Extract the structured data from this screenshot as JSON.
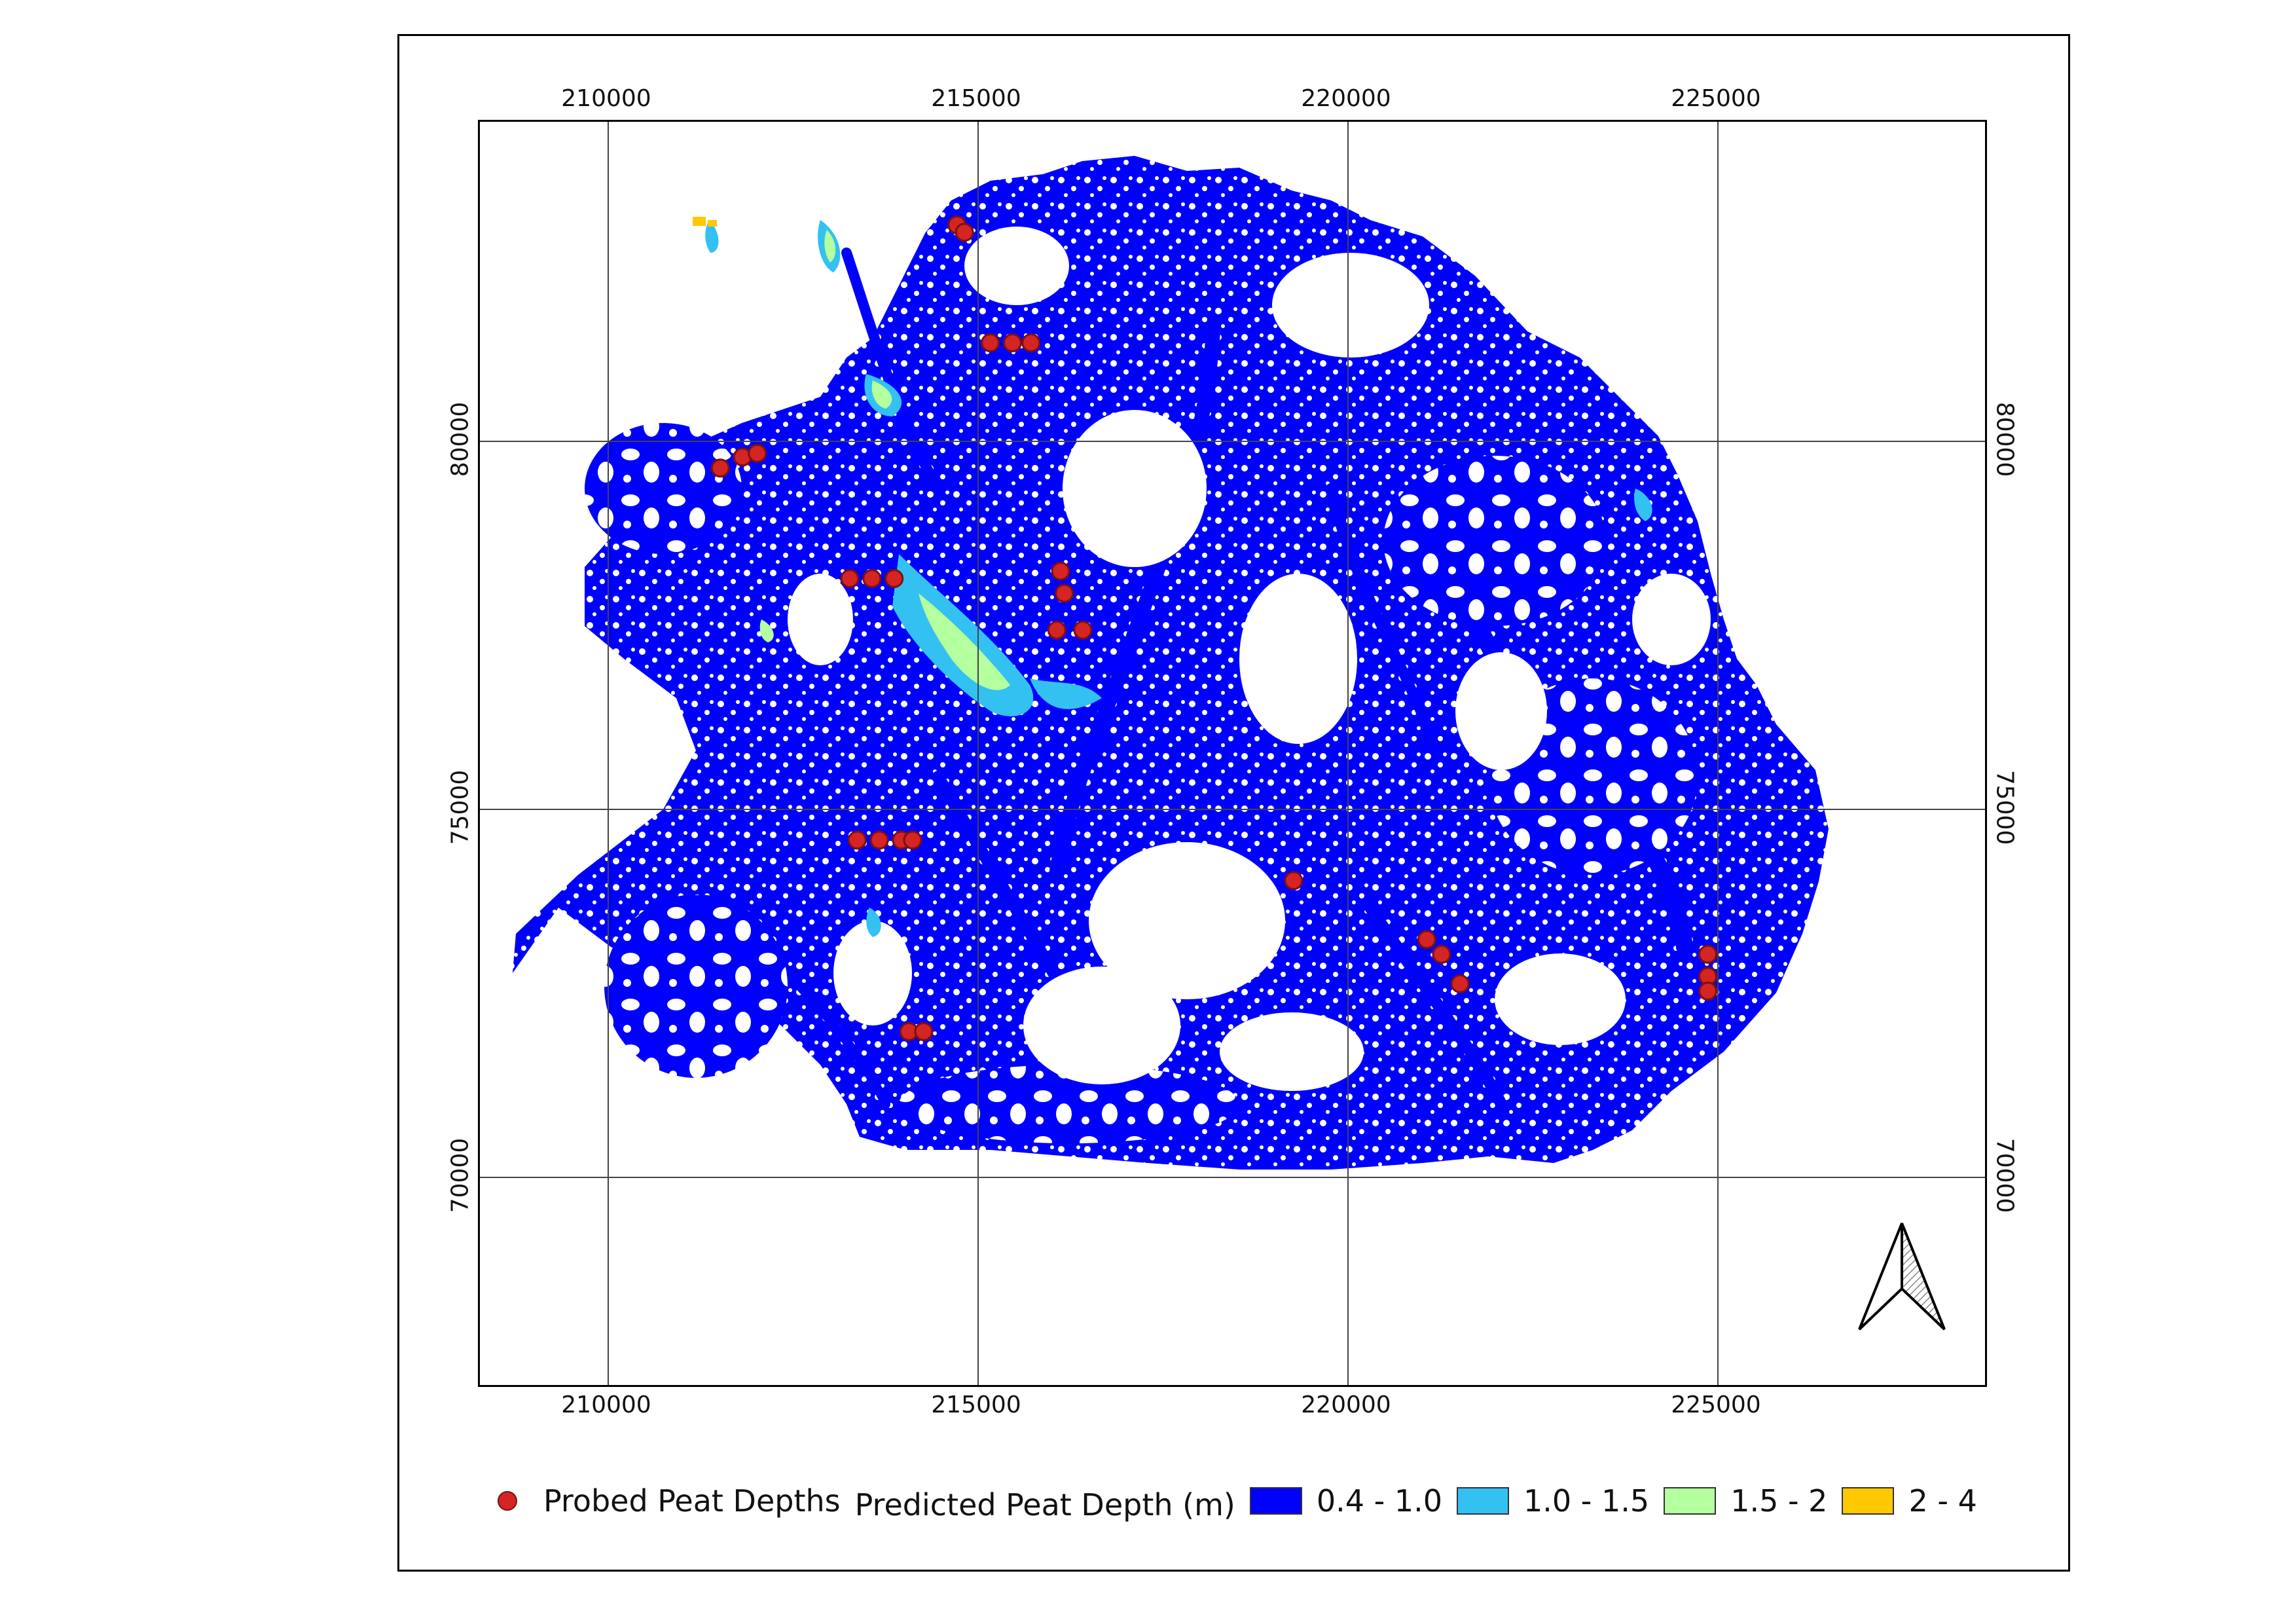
{
  "map": {
    "x_ticks": [
      "210000",
      "215000",
      "220000",
      "225000"
    ],
    "y_ticks": [
      "80000",
      "75000",
      "70000"
    ],
    "x_range": [
      208300,
      228700
    ],
    "y_range": [
      67200,
      84400
    ],
    "colors": {
      "background": "#ffffff",
      "depth_0_4_1_0": "#0000ff",
      "depth_1_0_1_5": "#33c1f2",
      "depth_1_5_2": "#b4ff9e",
      "depth_2_4": "#ffc800",
      "probe": "#d42424",
      "grid": "#444444"
    },
    "probe_points": [
      [
        214750,
        83000
      ],
      [
        214850,
        82900
      ],
      [
        215200,
        81400
      ],
      [
        215500,
        81400
      ],
      [
        215750,
        81400
      ],
      [
        211550,
        79700
      ],
      [
        211850,
        79850
      ],
      [
        212050,
        79900
      ],
      [
        213300,
        78200
      ],
      [
        213600,
        78200
      ],
      [
        213900,
        78200
      ],
      [
        216150,
        78300
      ],
      [
        216200,
        78000
      ],
      [
        216100,
        77500
      ],
      [
        216450,
        77500
      ],
      [
        213400,
        74650
      ],
      [
        213700,
        74650
      ],
      [
        214000,
        74650
      ],
      [
        214150,
        74650
      ],
      [
        219300,
        74100
      ],
      [
        221100,
        73300
      ],
      [
        221300,
        73100
      ],
      [
        221550,
        72700
      ],
      [
        224900,
        73100
      ],
      [
        224900,
        72800
      ],
      [
        224900,
        72600
      ],
      [
        214100,
        72050
      ],
      [
        214300,
        72050
      ]
    ]
  },
  "legend": {
    "probe_label": "Probed Peat Depths",
    "title": "Predicted Peat Depth (m)",
    "classes": [
      {
        "label": "0.4 - 1.0",
        "color": "#0000ff"
      },
      {
        "label": "1.0 - 1.5",
        "color": "#33c1f2"
      },
      {
        "label": "1.5 - 2",
        "color": "#b4ff9e"
      },
      {
        "label": "2 - 4",
        "color": "#ffc800"
      }
    ]
  },
  "north_arrow": {
    "icon": "north-arrow-icon"
  }
}
